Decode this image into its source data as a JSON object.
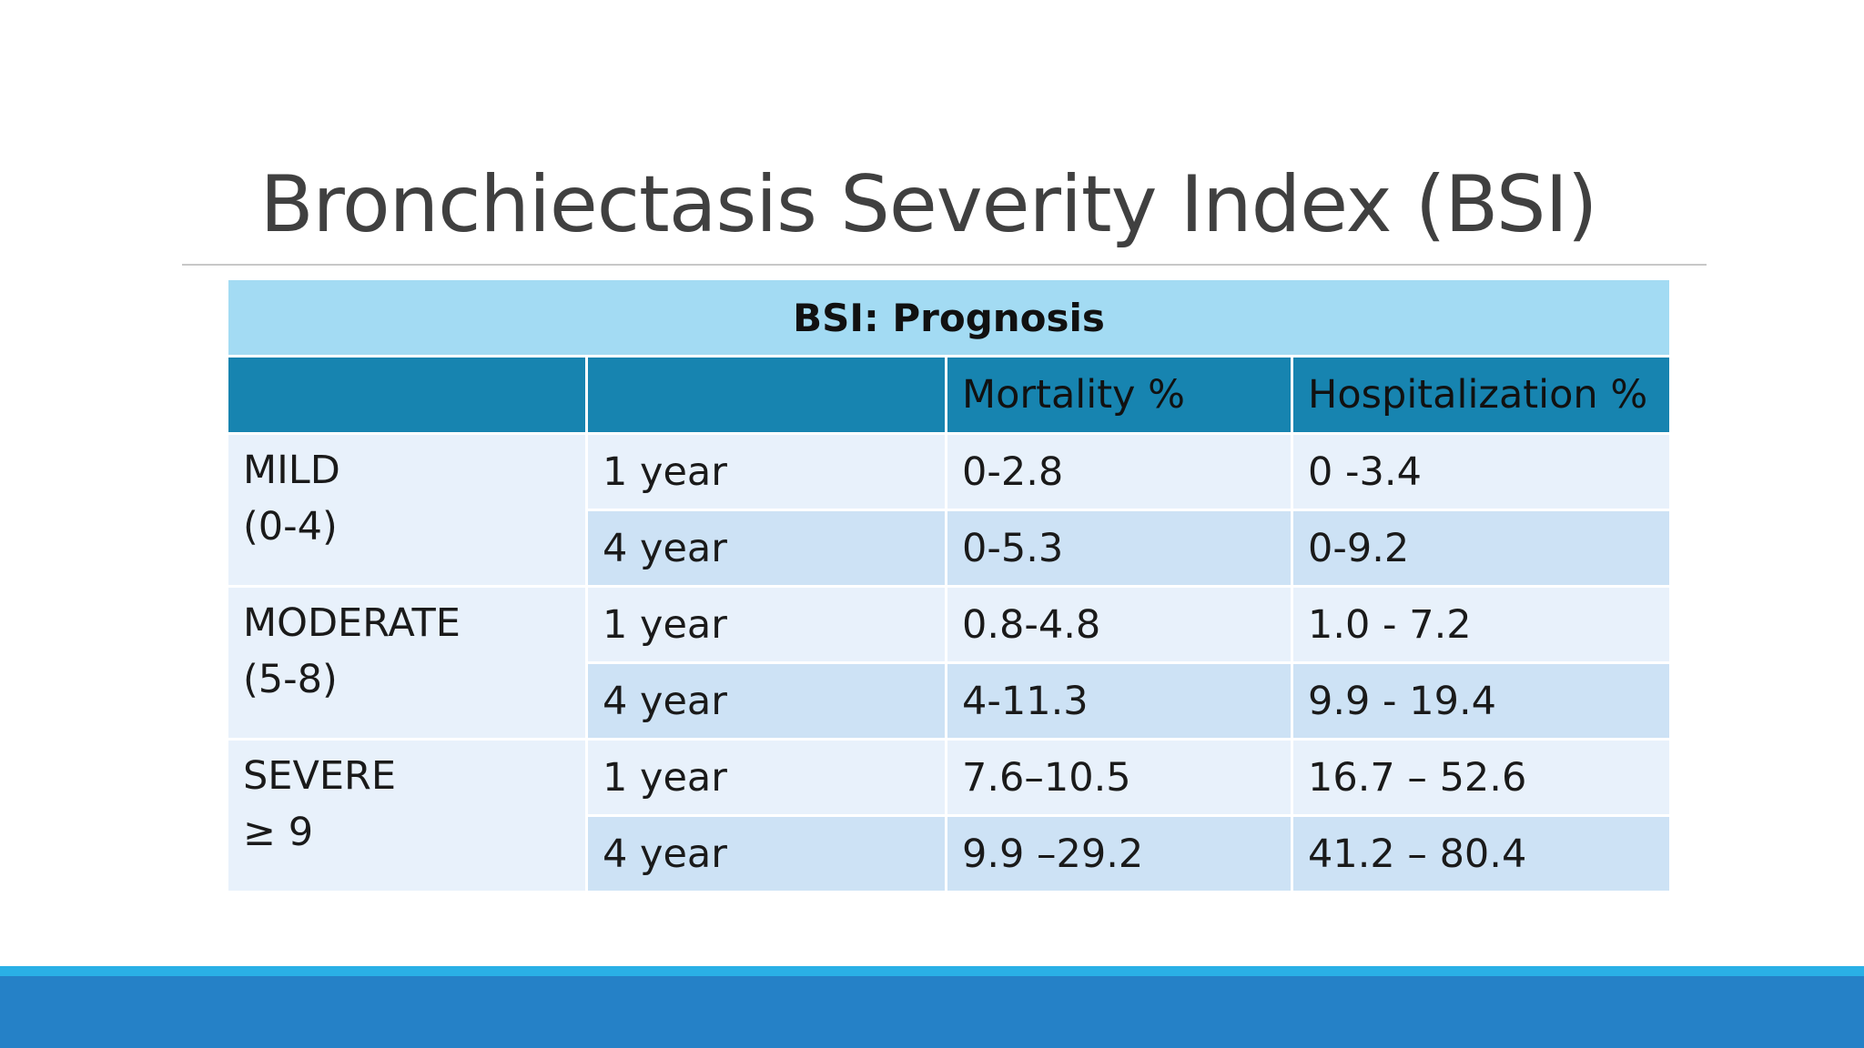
{
  "slide": {
    "title": "Bronchiectasis Severity Index (BSI)"
  },
  "table": {
    "caption": "BSI: Prognosis",
    "headers": [
      "",
      "",
      "Mortality %",
      "Hospitalization %"
    ],
    "groups": [
      {
        "label": "MILD",
        "range": "(0-4)",
        "rows": [
          {
            "period": "1 year",
            "mortality": "0-2.8",
            "hospitalization": "0 -3.4"
          },
          {
            "period": "4 year",
            "mortality": "0-5.3",
            "hospitalization": "0-9.2"
          }
        ]
      },
      {
        "label": "MODERATE",
        "range": "(5-8)",
        "rows": [
          {
            "period": "1 year",
            "mortality": "0.8-4.8",
            "hospitalization": "1.0 - 7.2"
          },
          {
            "period": "4 year",
            "mortality": "4-11.3",
            "hospitalization": "9.9 - 19.4"
          }
        ]
      },
      {
        "label": "SEVERE",
        "range": "≥ 9",
        "rows": [
          {
            "period": "1 year",
            "mortality": "7.6–10.5",
            "hospitalization": "16.7 – 52.6"
          },
          {
            "period": "4 year",
            "mortality": "9.9 –29.2",
            "hospitalization": "41.2 – 80.4"
          }
        ]
      }
    ]
  },
  "colors": {
    "caption_bg": "#a3dbf3",
    "header_bg": "#1784b0",
    "row_light": "#e8f1fb",
    "row_dark": "#cde2f5",
    "footer_stripe": "#2ab0e6",
    "footer_band": "#2581c7"
  }
}
